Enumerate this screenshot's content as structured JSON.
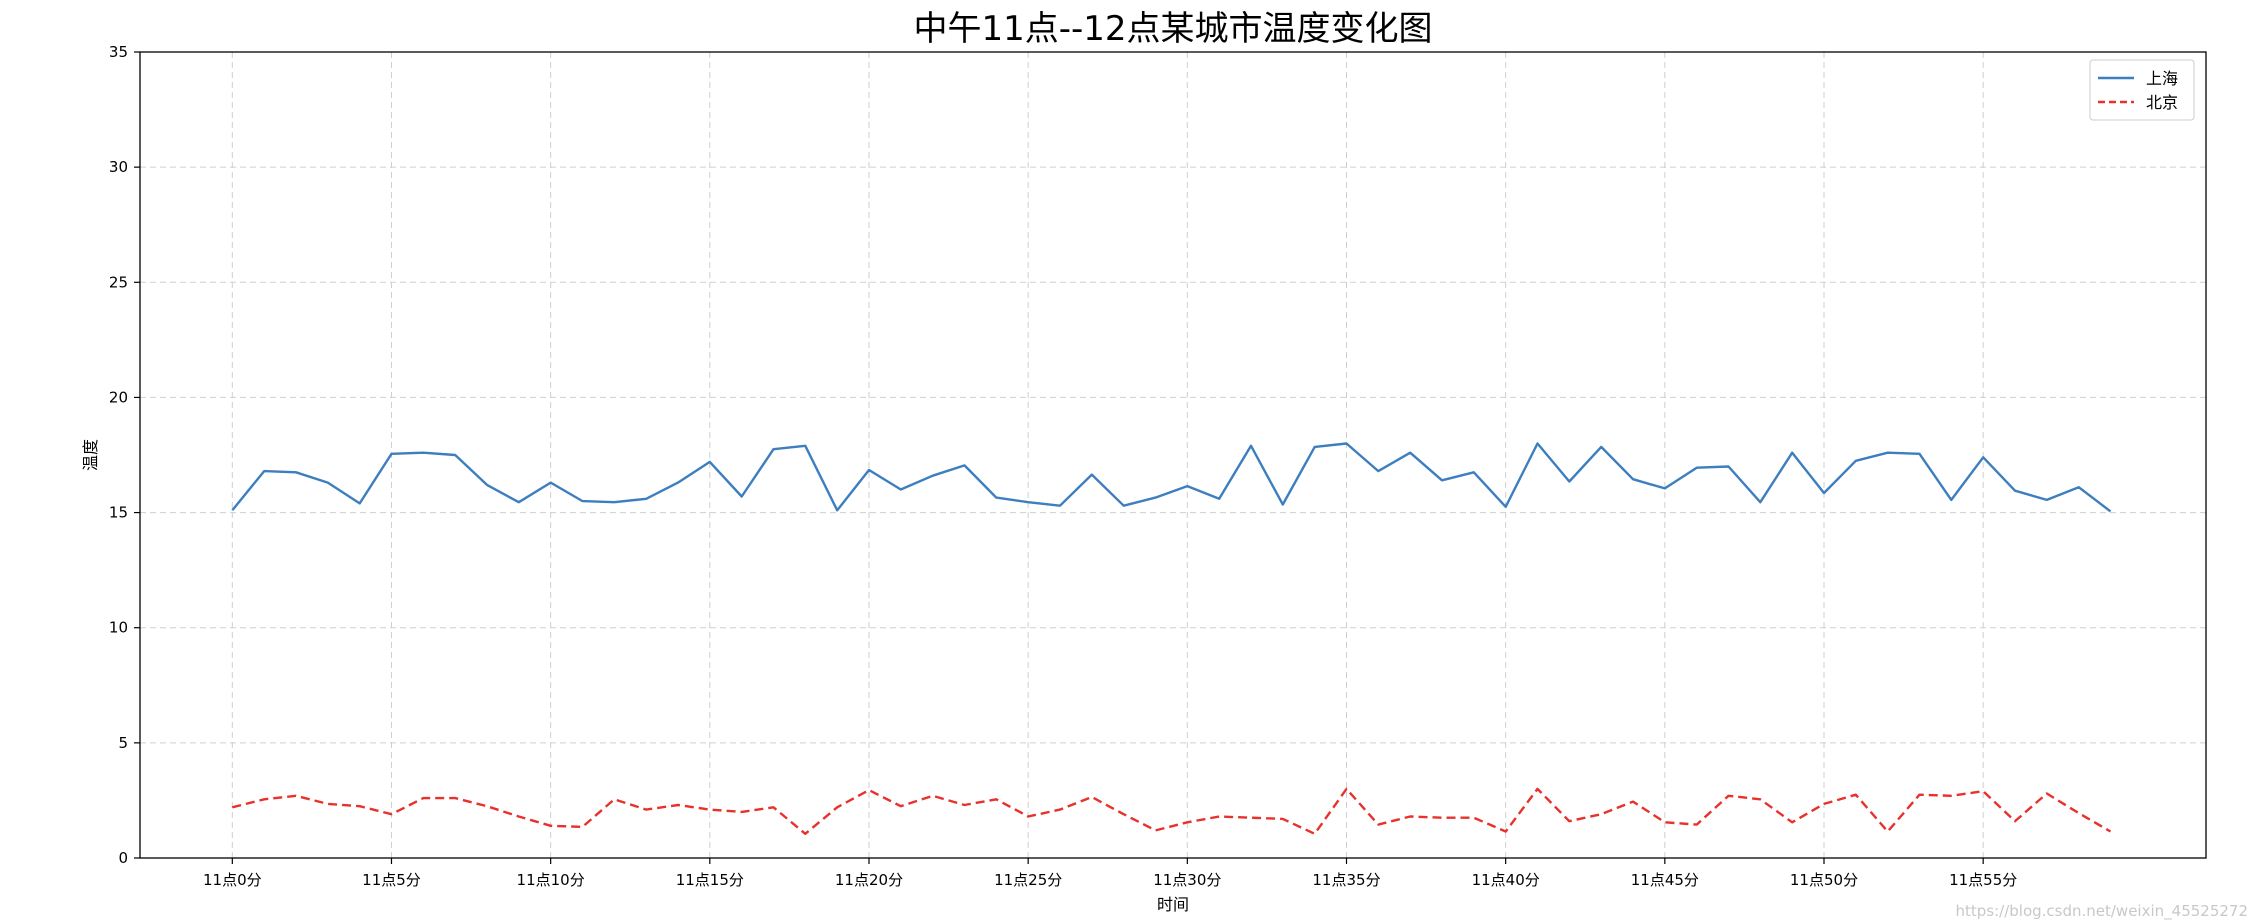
{
  "chart_data": {
    "type": "line",
    "title": "中午11点--12点某城市温度变化图",
    "xlabel": "时间",
    "ylabel": "温度",
    "x": [
      0,
      1,
      2,
      3,
      4,
      5,
      6,
      7,
      8,
      9,
      10,
      11,
      12,
      13,
      14,
      15,
      16,
      17,
      18,
      19,
      20,
      21,
      22,
      23,
      24,
      25,
      26,
      27,
      28,
      29,
      30,
      31,
      32,
      33,
      34,
      35,
      36,
      37,
      38,
      39,
      40,
      41,
      42,
      43,
      44,
      45,
      46,
      47,
      48,
      49,
      50,
      51,
      52,
      53,
      54,
      55,
      56,
      57,
      58,
      59
    ],
    "xticks": [
      0,
      5,
      10,
      15,
      20,
      25,
      30,
      35,
      40,
      45,
      50,
      55
    ],
    "xtick_labels": [
      "11点0分",
      "11点5分",
      "11点10分",
      "11点15分",
      "11点20分",
      "11点25分",
      "11点30分",
      "11点35分",
      "11点40分",
      "11点45分",
      "11点50分",
      "11点55分"
    ],
    "yticks": [
      0,
      5,
      10,
      15,
      20,
      25,
      30,
      35
    ],
    "ylim": [
      0,
      35
    ],
    "xlim": [
      -2.9,
      62.0
    ],
    "grid": true,
    "legend_position": "top-right",
    "series": [
      {
        "name": "上海",
        "color": "#3d7ebf",
        "style": "solid",
        "values": [
          15.1,
          16.8,
          16.75,
          16.3,
          15.4,
          17.55,
          17.6,
          17.5,
          16.2,
          15.45,
          16.3,
          15.5,
          15.45,
          15.6,
          16.3,
          17.2,
          15.7,
          17.75,
          17.9,
          15.1,
          16.85,
          16.0,
          16.6,
          17.05,
          15.65,
          15.45,
          15.3,
          16.65,
          15.3,
          15.65,
          16.15,
          15.6,
          17.9,
          15.35,
          17.85,
          18.0,
          16.8,
          17.6,
          16.4,
          16.75,
          15.25,
          18.0,
          16.35,
          17.85,
          16.45,
          16.05,
          16.95,
          17.0,
          15.45,
          17.6,
          15.85,
          17.25,
          17.6,
          17.55,
          15.55,
          17.4,
          15.95,
          15.55,
          16.1,
          15.05
        ]
      },
      {
        "name": "北京",
        "color": "#e8312b",
        "style": "dashed",
        "values": [
          2.2,
          2.55,
          2.7,
          2.35,
          2.25,
          1.9,
          2.6,
          2.6,
          2.25,
          1.8,
          1.4,
          1.35,
          2.55,
          2.1,
          2.3,
          2.1,
          2.0,
          2.2,
          1.05,
          2.2,
          2.95,
          2.25,
          2.7,
          2.3,
          2.55,
          1.8,
          2.1,
          2.65,
          1.9,
          1.2,
          1.55,
          1.8,
          1.75,
          1.7,
          1.05,
          3.0,
          1.45,
          1.8,
          1.75,
          1.75,
          1.15,
          3.0,
          1.6,
          1.9,
          2.45,
          1.55,
          1.45,
          2.7,
          2.55,
          1.55,
          2.35,
          2.75,
          1.15,
          2.75,
          2.7,
          2.9,
          1.6,
          2.8,
          1.95,
          1.15
        ]
      }
    ]
  },
  "watermark": "https://blog.csdn.net/weixin_45525272"
}
